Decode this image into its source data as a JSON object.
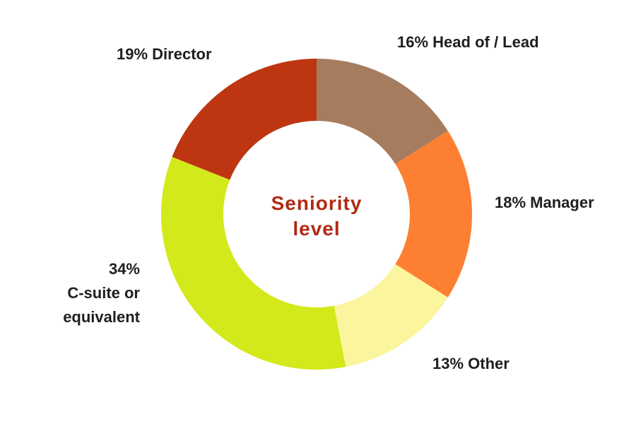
{
  "chart_data": {
    "type": "pie",
    "donut": true,
    "title": "Seniority level",
    "categories": [
      "Head of / Lead",
      "Manager",
      "Other",
      "C-suite or equivalent",
      "Director"
    ],
    "values": [
      16,
      18,
      13,
      34,
      19
    ],
    "value_labels": [
      "16%",
      "18%",
      "13%",
      "34%",
      "19%"
    ],
    "colors": [
      "#a67c5f",
      "#fd7f32",
      "#fbf59d",
      "#d4e91b",
      "#be3511"
    ]
  }
}
